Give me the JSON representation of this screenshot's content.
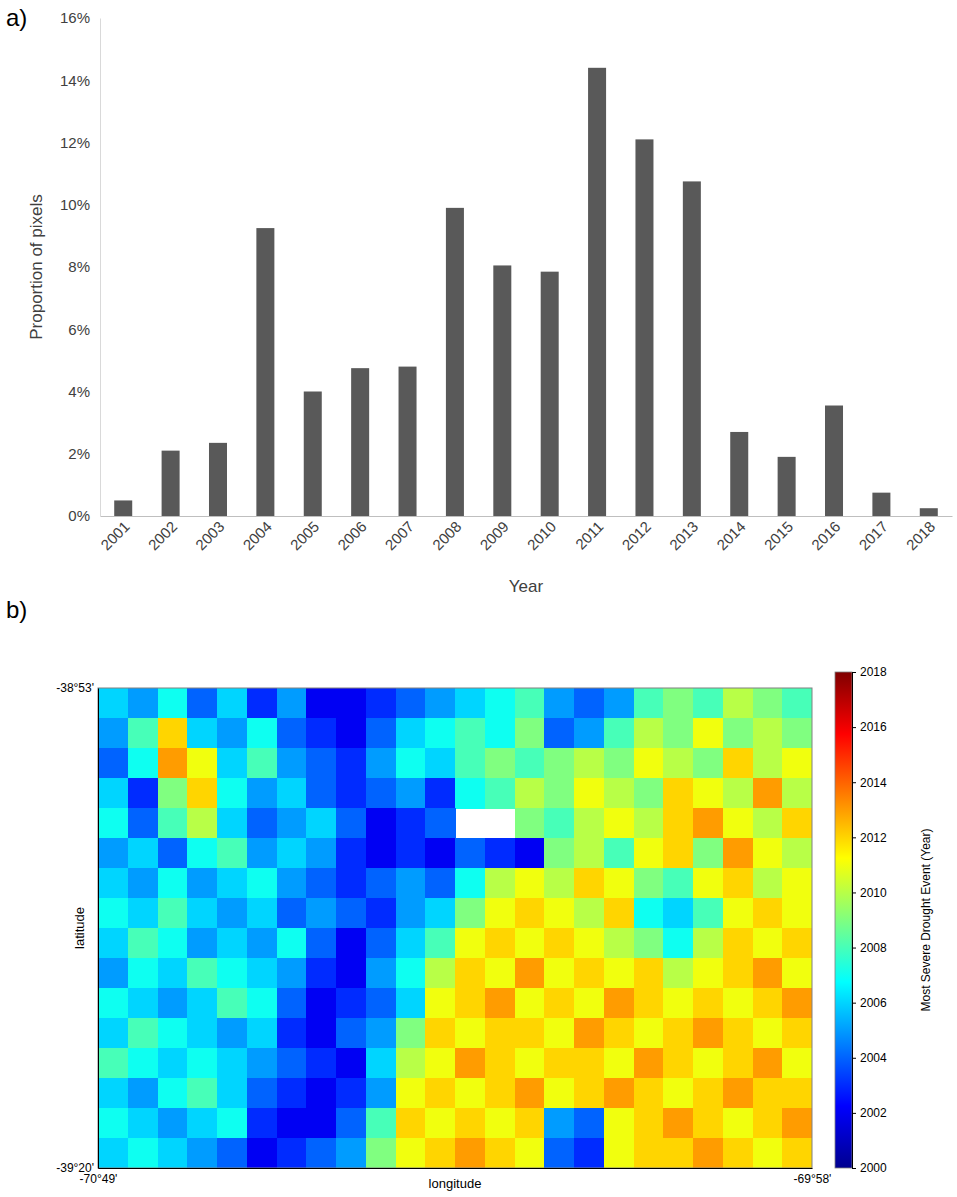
{
  "chart_data": [
    {
      "type": "bar",
      "panel_label": "a)",
      "x_label": "Year",
      "y_label": "Proportion of pixels",
      "categories": [
        "2001",
        "2002",
        "2003",
        "2004",
        "2005",
        "2006",
        "2007",
        "2008",
        "2009",
        "2010",
        "2011",
        "2012",
        "2013",
        "2014",
        "2015",
        "2016",
        "2017",
        "2018"
      ],
      "values": [
        0.5,
        2.1,
        2.35,
        9.25,
        4.0,
        4.75,
        4.8,
        9.9,
        8.05,
        7.85,
        14.4,
        12.1,
        10.75,
        2.7,
        1.9,
        3.55,
        0.75,
        0.25
      ],
      "color": "#595959",
      "ylim": [
        0,
        16
      ],
      "yticks": [
        {
          "value": 0,
          "label": "0%"
        },
        {
          "value": 2,
          "label": "2%"
        },
        {
          "value": 4,
          "label": "4%"
        },
        {
          "value": 6,
          "label": "6%"
        },
        {
          "value": 8,
          "label": "8%"
        },
        {
          "value": 10,
          "label": "10%"
        },
        {
          "value": 12,
          "label": "12%"
        },
        {
          "value": 14,
          "label": "14%"
        },
        {
          "value": 16,
          "label": "16%"
        }
      ]
    },
    {
      "type": "heatmap",
      "panel_label": "b)",
      "x_label": "longitude",
      "y_label": "latitude",
      "xlim": [
        -70.8167,
        -69.9667
      ],
      "xticks": [
        {
          "value": -70.8167,
          "label": "-70°49'"
        },
        {
          "value": -69.9667,
          "label": "-69°58'"
        }
      ],
      "ylim": [
        -39.3333,
        -38.8833
      ],
      "yticks": [
        {
          "value": -39.3333,
          "label": "-39°20'"
        },
        {
          "value": -38.8833,
          "label": "-38°53'"
        }
      ],
      "z": [
        [
          2006,
          2005,
          2007,
          2004,
          2006,
          2003,
          2005,
          2002,
          2002,
          2003,
          2004,
          2005,
          2006,
          2007,
          2008,
          2005,
          2004,
          2005,
          2008,
          2009,
          2008,
          2010,
          2009,
          2008
        ],
        [
          2005,
          2008,
          2012,
          2006,
          2005,
          2007,
          2004,
          2003,
          2002,
          2004,
          2006,
          2007,
          2008,
          2007,
          2009,
          2004,
          2005,
          2008,
          2010,
          2009,
          2011,
          2009,
          2010,
          2009
        ],
        [
          2004,
          2007,
          2013,
          2011,
          2006,
          2008,
          2005,
          2004,
          2003,
          2005,
          2007,
          2006,
          2008,
          2009,
          2008,
          2009,
          2010,
          2009,
          2011,
          2010,
          2009,
          2012,
          2010,
          2011
        ],
        [
          2006,
          2003,
          2009,
          2012,
          2007,
          2005,
          2006,
          2004,
          2003,
          2004,
          2005,
          2003,
          2007,
          2008,
          2010,
          2009,
          2011,
          2010,
          2009,
          2012,
          2011,
          2010,
          2013,
          2010
        ],
        [
          2007,
          2004,
          2008,
          2010,
          2006,
          2004,
          2005,
          2006,
          2004,
          2002,
          2003,
          2004,
          null,
          null,
          2009,
          2008,
          2010,
          2011,
          2010,
          2012,
          2013,
          2011,
          2010,
          2012
        ],
        [
          2005,
          2006,
          2004,
          2007,
          2008,
          2005,
          2006,
          2005,
          2003,
          2002,
          2003,
          2002,
          2004,
          2003,
          2002,
          2009,
          2010,
          2008,
          2011,
          2012,
          2009,
          2013,
          2011,
          2010
        ],
        [
          2006,
          2005,
          2007,
          2005,
          2006,
          2007,
          2005,
          2004,
          2003,
          2004,
          2005,
          2004,
          2007,
          2010,
          2011,
          2010,
          2012,
          2011,
          2009,
          2008,
          2011,
          2012,
          2010,
          2011
        ],
        [
          2007,
          2006,
          2008,
          2006,
          2005,
          2006,
          2004,
          2005,
          2004,
          2003,
          2005,
          2006,
          2009,
          2011,
          2012,
          2011,
          2010,
          2012,
          2007,
          2006,
          2008,
          2011,
          2012,
          2011
        ],
        [
          2006,
          2008,
          2007,
          2005,
          2006,
          2005,
          2007,
          2004,
          2002,
          2004,
          2006,
          2008,
          2011,
          2012,
          2011,
          2012,
          2011,
          2010,
          2009,
          2007,
          2010,
          2012,
          2011,
          2012
        ],
        [
          2005,
          2007,
          2006,
          2008,
          2007,
          2006,
          2005,
          2003,
          2002,
          2005,
          2007,
          2010,
          2012,
          2011,
          2013,
          2011,
          2012,
          2011,
          2012,
          2010,
          2011,
          2012,
          2013,
          2011
        ],
        [
          2007,
          2006,
          2005,
          2006,
          2008,
          2007,
          2004,
          2002,
          2003,
          2004,
          2006,
          2011,
          2012,
          2013,
          2011,
          2012,
          2011,
          2013,
          2012,
          2011,
          2012,
          2011,
          2012,
          2013
        ],
        [
          2006,
          2008,
          2007,
          2006,
          2005,
          2006,
          2003,
          2002,
          2004,
          2005,
          2009,
          2012,
          2011,
          2012,
          2012,
          2011,
          2013,
          2012,
          2011,
          2012,
          2013,
          2012,
          2011,
          2012
        ],
        [
          2008,
          2007,
          2006,
          2007,
          2006,
          2005,
          2004,
          2003,
          2002,
          2006,
          2010,
          2011,
          2013,
          2012,
          2011,
          2012,
          2012,
          2011,
          2013,
          2012,
          2011,
          2012,
          2013,
          2011
        ],
        [
          2006,
          2005,
          2007,
          2008,
          2006,
          2004,
          2003,
          2002,
          2003,
          2005,
          2011,
          2012,
          2011,
          2012,
          2013,
          2011,
          2012,
          2013,
          2012,
          2011,
          2012,
          2013,
          2012,
          2012
        ],
        [
          2007,
          2006,
          2005,
          2006,
          2007,
          2003,
          2002,
          2002,
          2004,
          2008,
          2012,
          2011,
          2012,
          2011,
          2012,
          2005,
          2004,
          2011,
          2012,
          2013,
          2012,
          2011,
          2012,
          2013
        ],
        [
          2006,
          2007,
          2006,
          2005,
          2004,
          2002,
          2003,
          2004,
          2005,
          2009,
          2011,
          2012,
          2013,
          2012,
          2011,
          2004,
          2003,
          2011,
          2012,
          2012,
          2013,
          2012,
          2011,
          2012
        ]
      ],
      "colorbar": {
        "range": [
          2000,
          2018
        ],
        "ticks": [
          2000,
          2002,
          2004,
          2006,
          2008,
          2010,
          2012,
          2014,
          2016,
          2018
        ],
        "label": "Most Severe Drought Event (Year)"
      }
    }
  ]
}
